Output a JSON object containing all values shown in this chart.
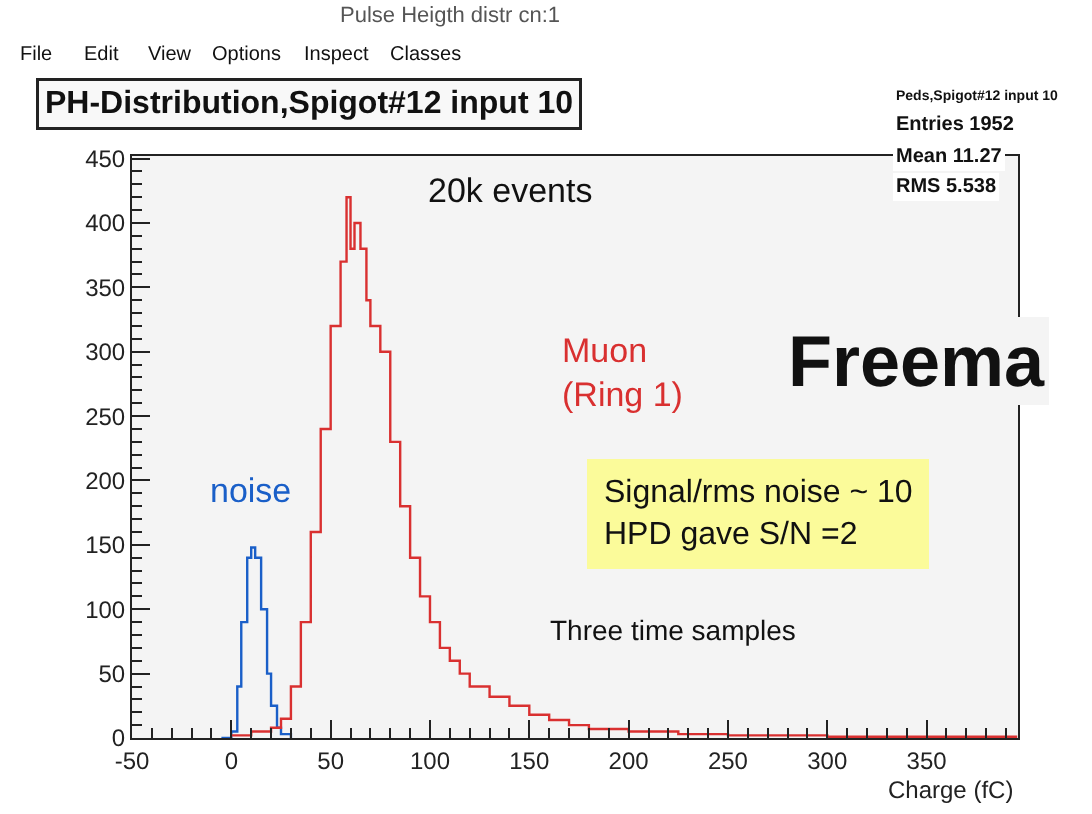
{
  "chart_data": {
    "type": "step",
    "title": "PH-Distribution,Spigot#12 input 10",
    "xlabel": "Charge (fC)",
    "xlim": [
      -50,
      396
    ],
    "ylim": [
      0,
      452
    ],
    "xticks": [
      -50,
      0,
      50,
      100,
      150,
      200,
      250,
      300,
      350
    ],
    "yticks": [
      0,
      50,
      100,
      150,
      200,
      250,
      300,
      350,
      400,
      450
    ],
    "grid": false,
    "legend": false,
    "marker": "none",
    "line_style": "solid",
    "series": [
      {
        "name": "noise",
        "color": "#1a5fc8",
        "x": [
          -5,
          0,
          3,
          5,
          8,
          10,
          12,
          15,
          18,
          20,
          23,
          25,
          30
        ],
        "values": [
          0,
          5,
          40,
          90,
          140,
          148,
          140,
          100,
          50,
          25,
          8,
          3,
          0
        ]
      },
      {
        "name": "Muon\n(Ring 1)",
        "color": "#d93030",
        "x": [
          0,
          10,
          20,
          25,
          30,
          35,
          40,
          45,
          50,
          55,
          58,
          60,
          62,
          65,
          68,
          70,
          75,
          80,
          85,
          90,
          95,
          100,
          105,
          110,
          115,
          120,
          130,
          140,
          150,
          160,
          170,
          180,
          200,
          225,
          250,
          300,
          350,
          395
        ],
        "values": [
          2,
          5,
          8,
          15,
          40,
          90,
          160,
          240,
          320,
          370,
          420,
          380,
          400,
          380,
          340,
          320,
          300,
          230,
          180,
          140,
          110,
          90,
          70,
          60,
          50,
          40,
          32,
          25,
          18,
          14,
          10,
          7,
          5,
          3,
          2,
          1,
          1,
          0
        ]
      }
    ],
    "annotations": [
      "Pulse Heigth distr cn:1",
      "File",
      "Edit",
      "View",
      "Options",
      "Inspect",
      "Classes",
      "Peds,Spigot#12 input 10",
      "Entries 1952",
      "Mean 11.27",
      "RMS 5.538",
      "20k events",
      "Freema",
      "Signal/rms noise ~ 10\nHPD gave S/N =2",
      "Three time samples"
    ]
  }
}
